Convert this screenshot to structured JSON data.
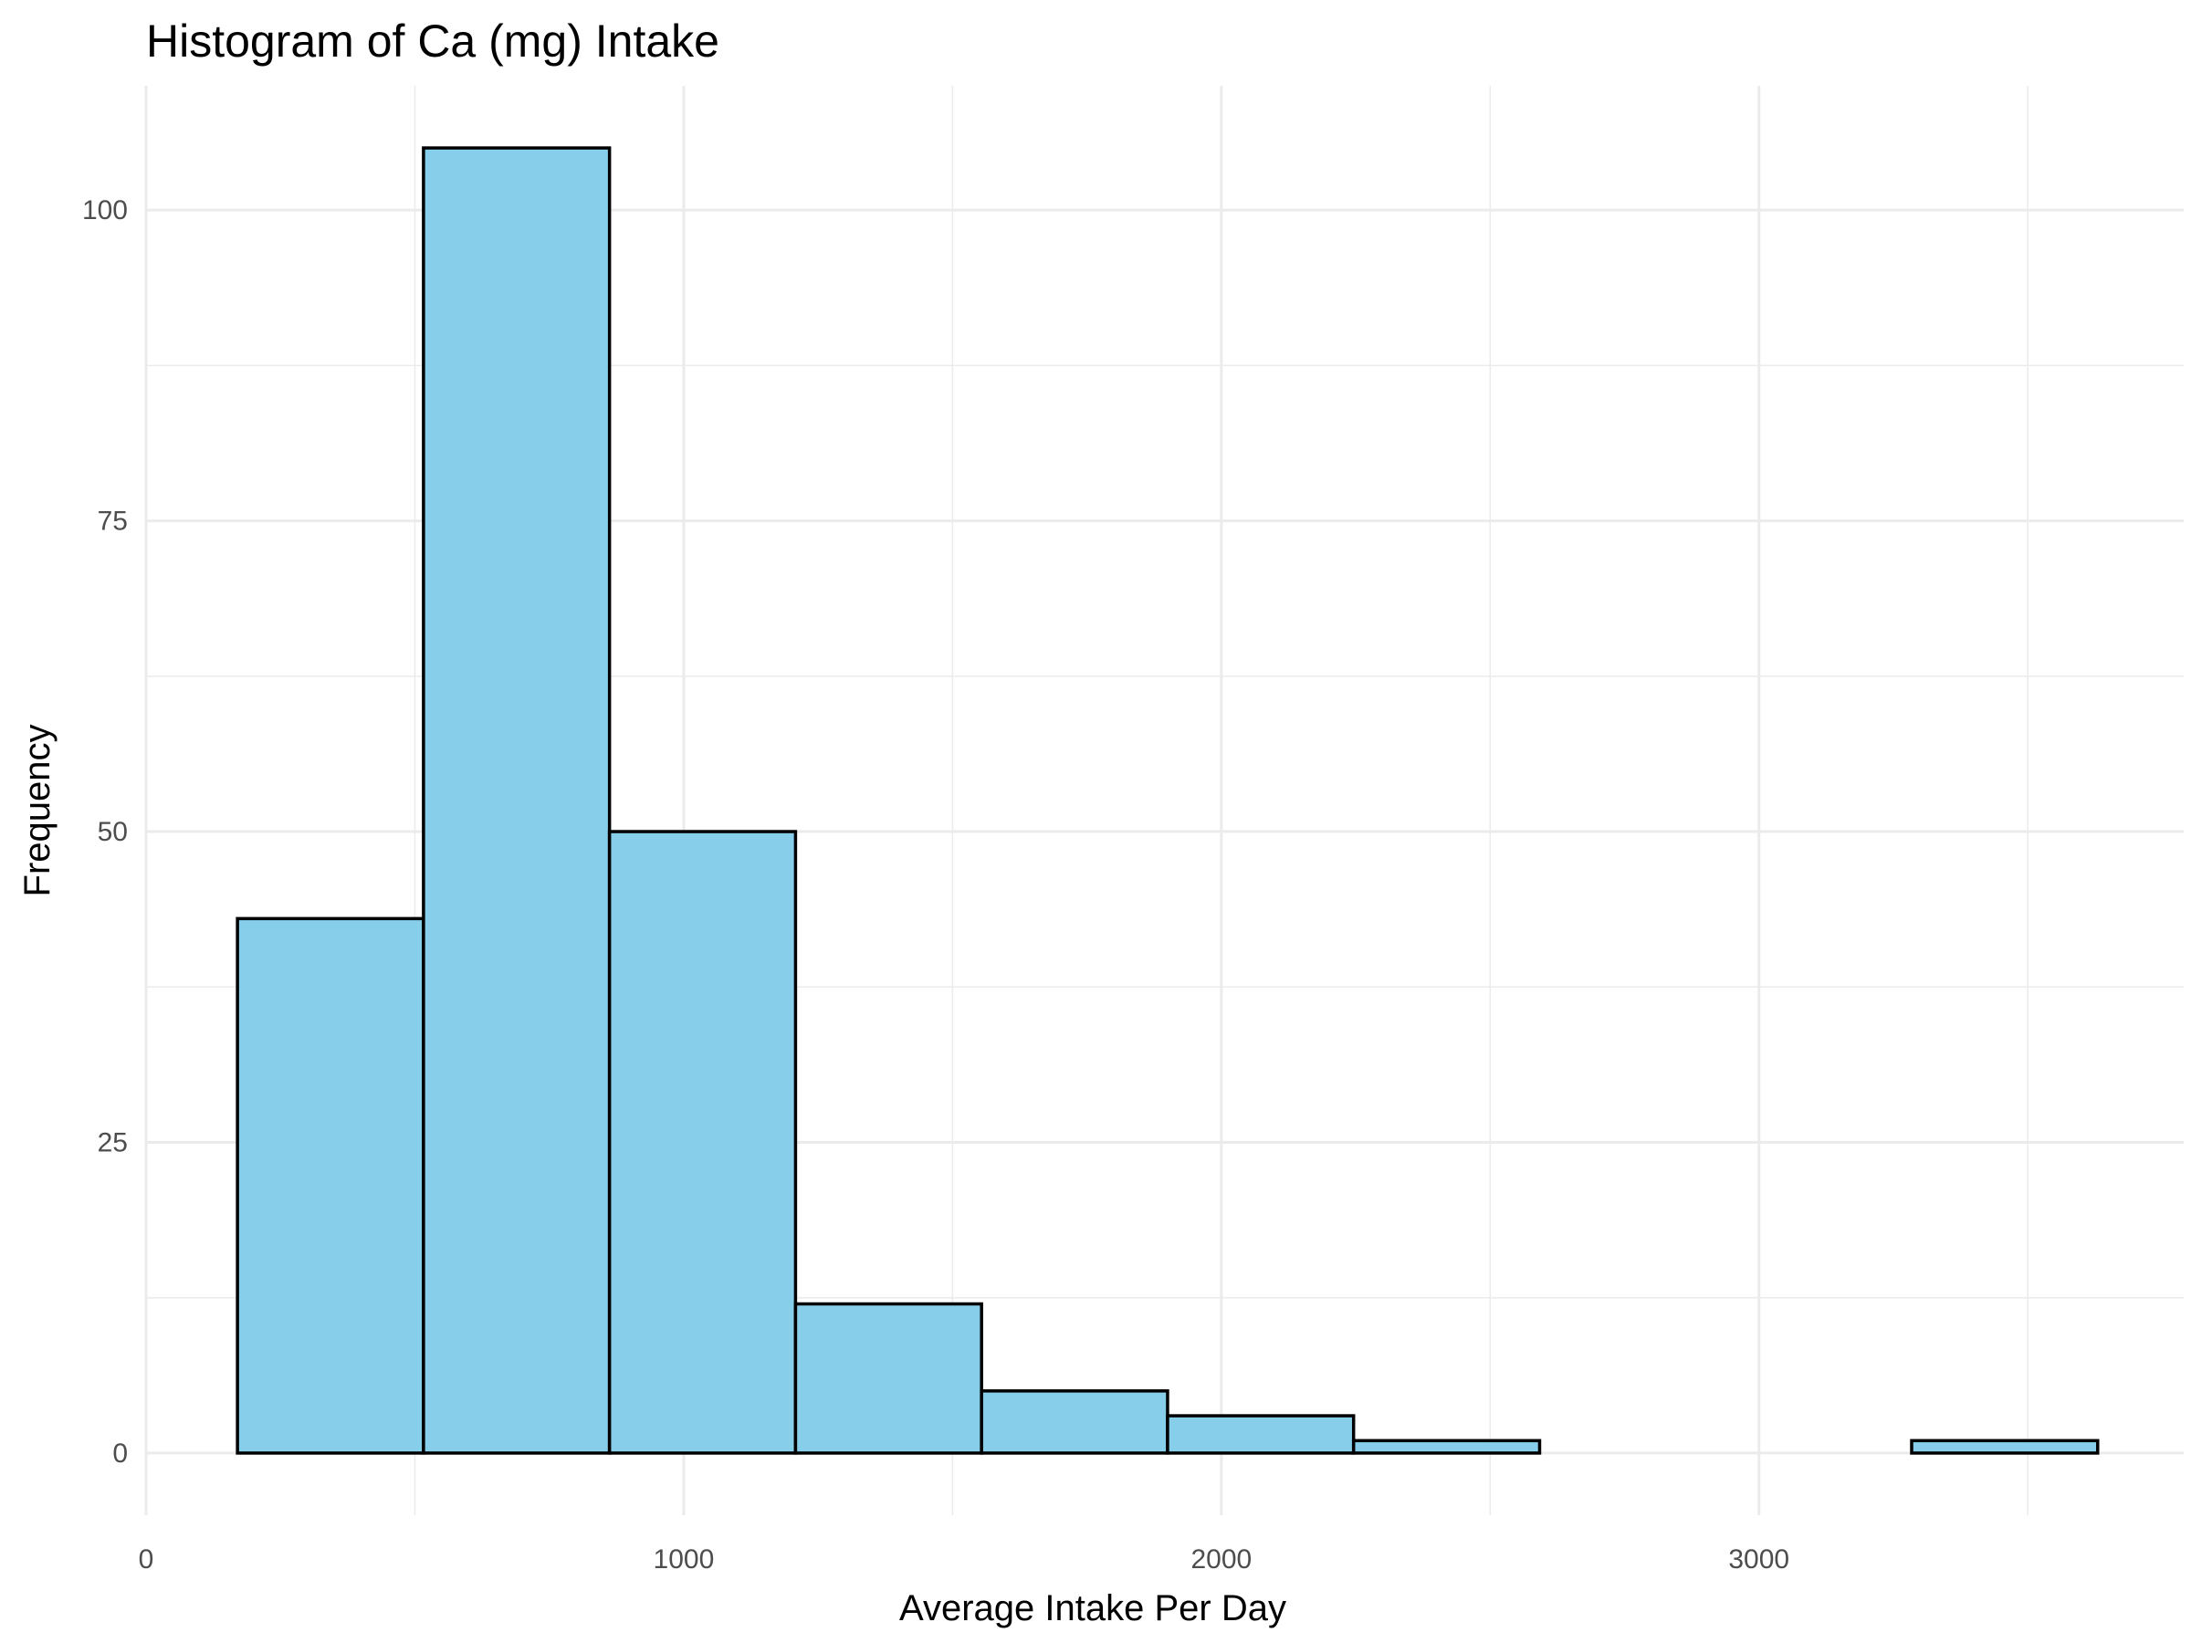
{
  "chart_data": {
    "type": "histogram",
    "title": "Histogram of Ca (mg) Intake",
    "xlabel": "Average Intake Per Day",
    "ylabel": "Frequency",
    "xlim": [
      0,
      3790
    ],
    "ylim": [
      -5,
      110
    ],
    "x_ticks": [
      0,
      1000,
      2000,
      3000
    ],
    "y_ticks": [
      0,
      25,
      50,
      75,
      100
    ],
    "grid": true,
    "bar_fill": "#87CEEB",
    "bar_outline": "#000000",
    "bins": [
      {
        "x0": 170,
        "x1": 516,
        "count": 43
      },
      {
        "x0": 516,
        "x1": 862,
        "count": 105
      },
      {
        "x0": 862,
        "x1": 1208,
        "count": 50
      },
      {
        "x0": 1208,
        "x1": 1554,
        "count": 12
      },
      {
        "x0": 1554,
        "x1": 1900,
        "count": 5
      },
      {
        "x0": 1900,
        "x1": 2246,
        "count": 3
      },
      {
        "x0": 2246,
        "x1": 2592,
        "count": 1
      },
      {
        "x0": 2592,
        "x1": 2938,
        "count": 0
      },
      {
        "x0": 2938,
        "x1": 3284,
        "count": 0
      },
      {
        "x0": 3284,
        "x1": 3630,
        "count": 1
      }
    ]
  }
}
